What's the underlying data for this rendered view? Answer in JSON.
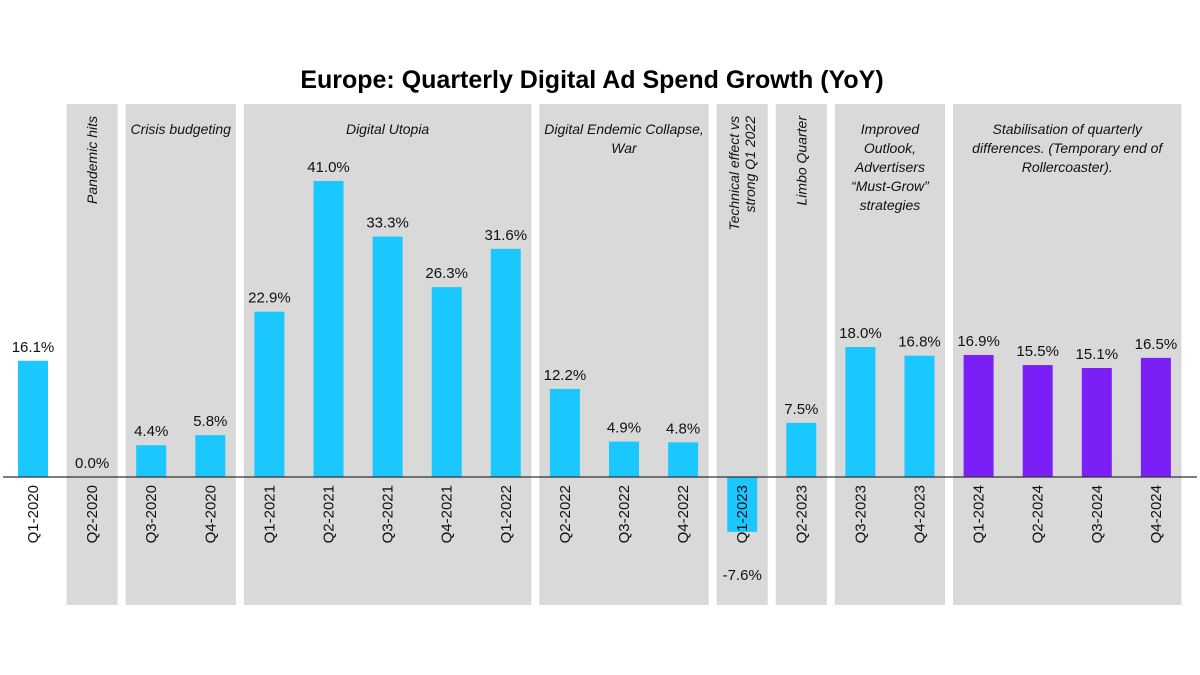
{
  "chart_data": {
    "type": "bar",
    "title": "Europe: Quarterly Digital Ad Spend Growth (YoY)",
    "xlabel": "",
    "ylabel": "",
    "grid": false,
    "value_format": "percent, 1 decimal",
    "categories": [
      "Q1-2020",
      "Q2-2020",
      "Q3-2020",
      "Q4-2020",
      "Q1-2021",
      "Q2-2021",
      "Q3-2021",
      "Q4-2021",
      "Q1-2022",
      "Q2-2022",
      "Q3-2022",
      "Q4-2022",
      "Q1-2023",
      "Q2-2023",
      "Q3-2023",
      "Q4-2023",
      "Q1-2024",
      "Q2-2024",
      "Q3-2024",
      "Q4-2024"
    ],
    "values": [
      16.1,
      0.0,
      4.4,
      5.8,
      22.9,
      41.0,
      33.3,
      26.3,
      31.6,
      12.2,
      4.9,
      4.8,
      -7.6,
      7.5,
      18.0,
      16.8,
      16.9,
      15.5,
      15.1,
      16.5
    ],
    "data_labels": [
      "16.1%",
      "0.0%",
      "4.4%",
      "5.8%",
      "22.9%",
      "41.0%",
      "33.3%",
      "26.3%",
      "31.6%",
      "12.2%",
      "4.9%",
      "4.8%",
      "-7.6%",
      "7.5%",
      "18.0%",
      "16.8%",
      "16.9%",
      "15.5%",
      "15.1%",
      "16.5%"
    ],
    "bar_colors": [
      "#1AC8FF",
      "#1AC8FF",
      "#1AC8FF",
      "#1AC8FF",
      "#1AC8FF",
      "#1AC8FF",
      "#1AC8FF",
      "#1AC8FF",
      "#1AC8FF",
      "#1AC8FF",
      "#1AC8FF",
      "#1AC8FF",
      "#1AC8FF",
      "#1AC8FF",
      "#1AC8FF",
      "#1AC8FF",
      "#7A1FF5",
      "#7A1FF5",
      "#7A1FF5",
      "#7A1FF5"
    ],
    "ylim": [
      -7.6,
      41.0
    ],
    "region_color": "#D9D9D9",
    "annotations": [
      {
        "from": 1,
        "to": 1,
        "rotated": true,
        "lines": [
          "Pandemic hits"
        ]
      },
      {
        "from": 2,
        "to": 3,
        "rotated": false,
        "lines": [
          "Crisis budgeting"
        ]
      },
      {
        "from": 4,
        "to": 8,
        "rotated": false,
        "lines": [
          "Digital Utopia"
        ]
      },
      {
        "from": 9,
        "to": 11,
        "rotated": false,
        "lines": [
          "Digital Endemic Collapse,",
          "War"
        ]
      },
      {
        "from": 12,
        "to": 12,
        "rotated": true,
        "lines": [
          "Technical effect vs",
          "strong Q1 2022"
        ]
      },
      {
        "from": 13,
        "to": 13,
        "rotated": true,
        "lines": [
          "Limbo Quarter"
        ]
      },
      {
        "from": 14,
        "to": 15,
        "rotated": false,
        "lines": [
          "Improved",
          "Outlook,",
          "Advertisers",
          "“Must-Grow”",
          "strategies"
        ]
      },
      {
        "from": 16,
        "to": 19,
        "rotated": false,
        "lines": [
          "Stabilisation of quarterly",
          "differences. (Temporary end of",
          "Rollercoaster)."
        ]
      }
    ]
  }
}
